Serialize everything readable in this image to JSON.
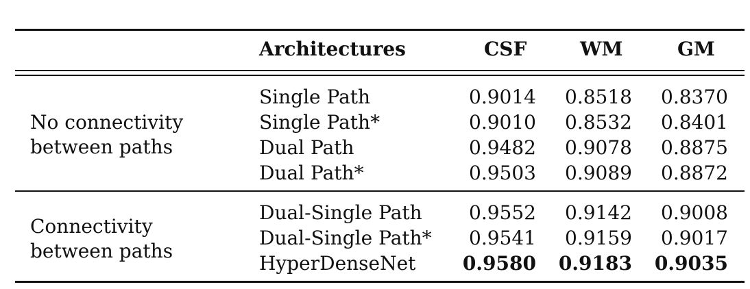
{
  "table": {
    "headers": {
      "group": "",
      "architectures": "Architectures",
      "csf": "CSF",
      "wm": "WM",
      "gm": "GM"
    },
    "groups": [
      {
        "label_line1": "No connectivity",
        "label_line2": "between paths",
        "rows": [
          {
            "arch": "Single Path",
            "csf": "0.9014",
            "wm": "0.8518",
            "gm": "0.8370"
          },
          {
            "arch": "Single Path*",
            "csf": "0.9010",
            "wm": "0.8532",
            "gm": "0.8401"
          },
          {
            "arch": "Dual Path",
            "csf": "0.9482",
            "wm": "0.9078",
            "gm": "0.8875"
          },
          {
            "arch": "Dual Path*",
            "csf": "0.9503",
            "wm": "0.9089",
            "gm": "0.8872"
          }
        ]
      },
      {
        "label_line1": "Connectivity",
        "label_line2": "between paths",
        "rows": [
          {
            "arch": "Dual-Single Path",
            "csf": "0.9552",
            "wm": "0.9142",
            "gm": "0.9008"
          },
          {
            "arch": "Dual-Single Path*",
            "csf": "0.9541",
            "wm": "0.9159",
            "gm": "0.9017"
          },
          {
            "arch": "HyperDenseNet",
            "csf": "0.9580",
            "wm": "0.9183",
            "gm": "0.9035"
          }
        ]
      }
    ]
  }
}
